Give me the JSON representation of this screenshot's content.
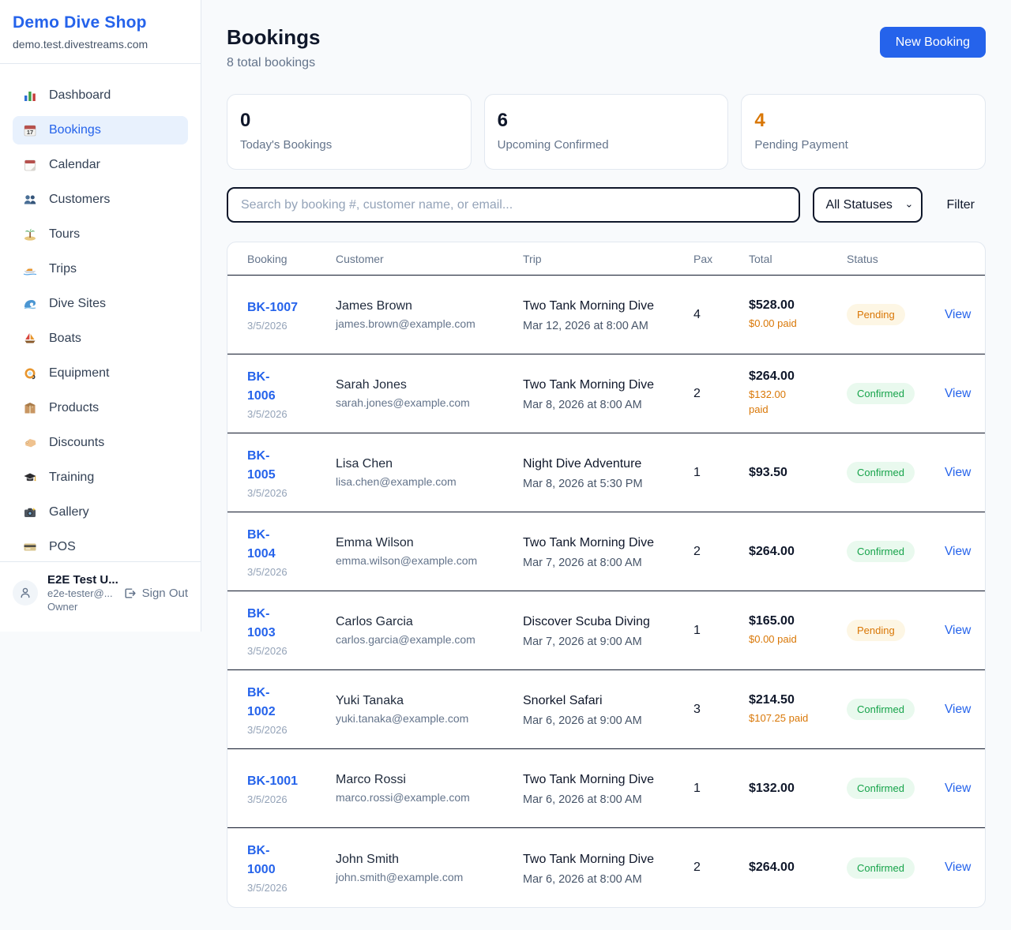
{
  "sidebar": {
    "title": "Demo Dive Shop",
    "subtitle": "demo.test.divestreams.com",
    "items": [
      {
        "label": "Dashboard",
        "icon": "bar-chart-icon",
        "active": false
      },
      {
        "label": "Bookings",
        "icon": "calendar-date-icon",
        "active": true
      },
      {
        "label": "Calendar",
        "icon": "tear-off-calendar-icon",
        "active": false
      },
      {
        "label": "Customers",
        "icon": "users-icon",
        "active": false
      },
      {
        "label": "Tours",
        "icon": "island-icon",
        "active": false
      },
      {
        "label": "Trips",
        "icon": "speedboat-icon",
        "active": false
      },
      {
        "label": "Dive Sites",
        "icon": "wave-icon",
        "active": false
      },
      {
        "label": "Boats",
        "icon": "sailboat-icon",
        "active": false
      },
      {
        "label": "Equipment",
        "icon": "diving-mask-icon",
        "active": false
      },
      {
        "label": "Products",
        "icon": "package-icon",
        "active": false
      },
      {
        "label": "Discounts",
        "icon": "label-icon",
        "active": false
      },
      {
        "label": "Training",
        "icon": "graduation-cap-icon",
        "active": false
      },
      {
        "label": "Gallery",
        "icon": "camera-icon",
        "active": false
      },
      {
        "label": "POS",
        "icon": "credit-card-icon",
        "active": false
      }
    ],
    "user": {
      "name": "E2E Test U...",
      "email": "e2e-tester@...",
      "role": "Owner",
      "sign_out_label": "Sign Out"
    }
  },
  "header": {
    "title": "Bookings",
    "subtitle": "8 total bookings",
    "new_booking_label": "New Booking"
  },
  "stats": [
    {
      "value": "0",
      "label": "Today's Bookings",
      "color": "#0f172a"
    },
    {
      "value": "6",
      "label": "Upcoming Confirmed",
      "color": "#0f172a"
    },
    {
      "value": "4",
      "label": "Pending Payment",
      "color": "#d97706"
    }
  ],
  "controls": {
    "search_placeholder": "Search by booking #, customer name, or email...",
    "status_filter_value": "All Statuses",
    "filter_label": "Filter"
  },
  "table": {
    "columns": [
      "Booking",
      "Customer",
      "Trip",
      "Pax",
      "Total",
      "Status"
    ],
    "view_label": "View",
    "rows": [
      {
        "id": "BK-1007",
        "date": "3/5/2026",
        "customer": "James Brown",
        "email": "james.brown@example.com",
        "trip": "Two Tank Morning Dive",
        "trip_datetime": "Mar 12, 2026 at 8:00 AM",
        "pax": "4",
        "total": "$528.00",
        "paid": "$0.00 paid",
        "status": "Pending"
      },
      {
        "id": "BK-\n1006",
        "date": "3/5/2026",
        "customer": "Sarah Jones",
        "email": "sarah.jones@example.com",
        "trip": "Two Tank Morning Dive",
        "trip_datetime": "Mar 8, 2026 at 8:00 AM",
        "pax": "2",
        "total": "$264.00",
        "paid": "$132.00\npaid",
        "status": "Confirmed"
      },
      {
        "id": "BK-\n1005",
        "date": "3/5/2026",
        "customer": "Lisa Chen",
        "email": "lisa.chen@example.com",
        "trip": "Night Dive Adventure",
        "trip_datetime": "Mar 8, 2026 at 5:30 PM",
        "pax": "1",
        "total": "$93.50",
        "paid": null,
        "status": "Confirmed"
      },
      {
        "id": "BK-\n1004",
        "date": "3/5/2026",
        "customer": "Emma Wilson",
        "email": "emma.wilson@example.com",
        "trip": "Two Tank Morning Dive",
        "trip_datetime": "Mar 7, 2026 at 8:00 AM",
        "pax": "2",
        "total": "$264.00",
        "paid": null,
        "status": "Confirmed"
      },
      {
        "id": "BK-\n1003",
        "date": "3/5/2026",
        "customer": "Carlos Garcia",
        "email": "carlos.garcia@example.com",
        "trip": "Discover Scuba Diving",
        "trip_datetime": "Mar 7, 2026 at 9:00 AM",
        "pax": "1",
        "total": "$165.00",
        "paid": "$0.00 paid",
        "status": "Pending"
      },
      {
        "id": "BK-\n1002",
        "date": "3/5/2026",
        "customer": "Yuki Tanaka",
        "email": "yuki.tanaka@example.com",
        "trip": "Snorkel Safari",
        "trip_datetime": "Mar 6, 2026 at 9:00 AM",
        "pax": "3",
        "total": "$214.50",
        "paid": "$107.25 paid",
        "status": "Confirmed"
      },
      {
        "id": "BK-1001",
        "date": "3/5/2026",
        "customer": "Marco Rossi",
        "email": "marco.rossi@example.com",
        "trip": "Two Tank Morning Dive",
        "trip_datetime": "Mar 6, 2026 at 8:00 AM",
        "pax": "1",
        "total": "$132.00",
        "paid": null,
        "status": "Confirmed"
      },
      {
        "id": "BK-\n1000",
        "date": "3/5/2026",
        "customer": "John Smith",
        "email": "john.smith@example.com",
        "trip": "Two Tank Morning Dive",
        "trip_datetime": "Mar 6, 2026 at 8:00 AM",
        "pax": "2",
        "total": "$264.00",
        "paid": null,
        "status": "Confirmed"
      }
    ]
  },
  "status_colors": {
    "Pending": {
      "bg": "#fdf6e4",
      "text": "#d97706"
    },
    "Confirmed": {
      "bg": "#e9f9ee",
      "text": "#16a34a"
    }
  },
  "accent_color": "#2563eb"
}
